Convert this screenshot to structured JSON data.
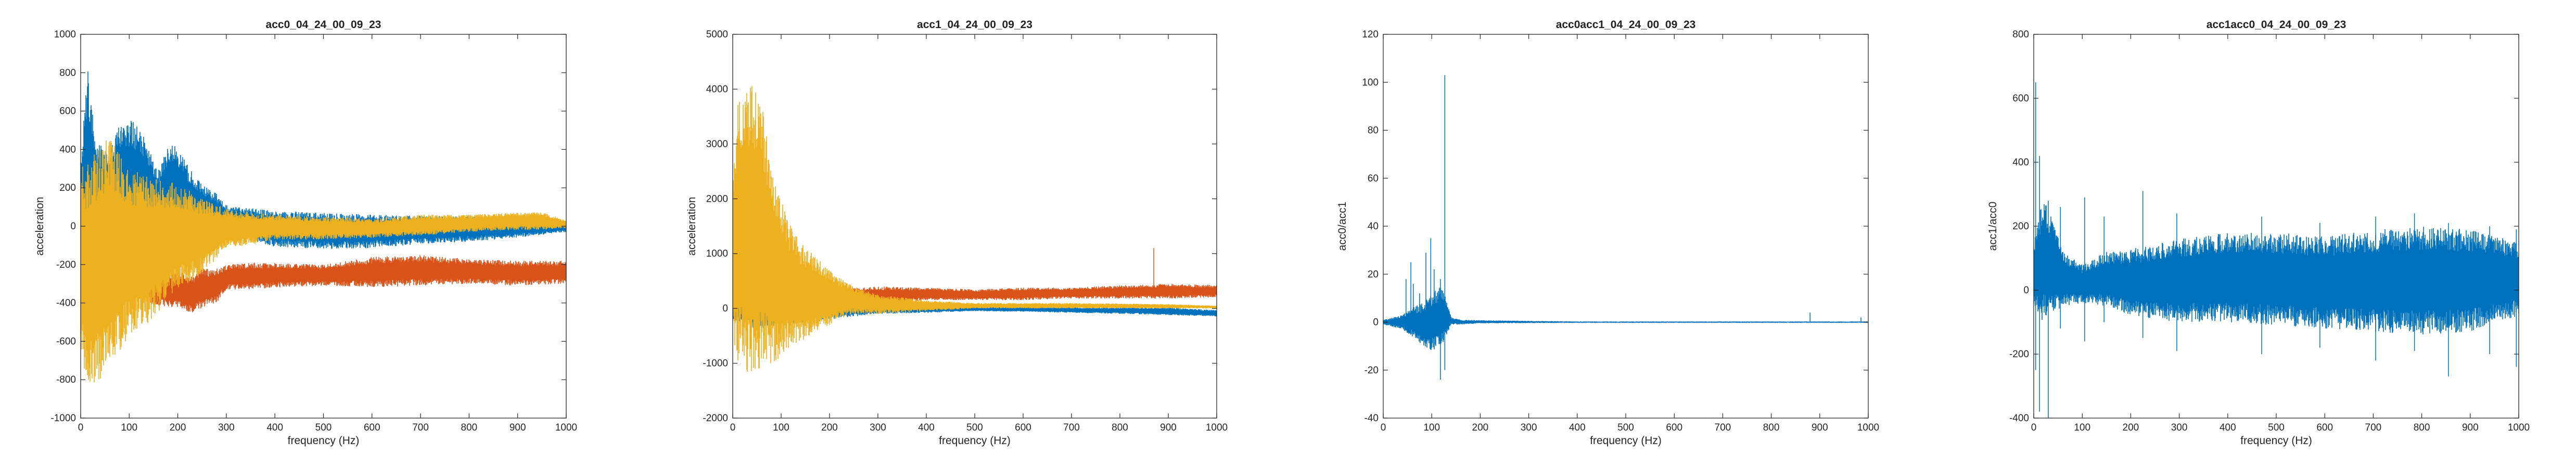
{
  "chart_data": [
    {
      "type": "line",
      "title": "acc0_04_24_00_09_23",
      "xlabel": "frequency (Hz)",
      "ylabel": "acceleration",
      "xlim": [
        0,
        1000
      ],
      "ylim": [
        -1000,
        1000
      ],
      "xticks": [
        0,
        100,
        200,
        300,
        400,
        500,
        600,
        700,
        800,
        900,
        1000
      ],
      "yticks": [
        -1000,
        -800,
        -600,
        -400,
        -200,
        0,
        200,
        400,
        600,
        800,
        1000
      ],
      "grid": false,
      "series": [
        {
          "color": "#0072BD",
          "order": 1,
          "envelope": [
            [
              0,
              -100,
              380
            ],
            [
              15,
              -200,
              820
            ],
            [
              30,
              -120,
              450
            ],
            [
              60,
              -90,
              380
            ],
            [
              80,
              -70,
              540
            ],
            [
              100,
              -80,
              560
            ],
            [
              120,
              -70,
              520
            ],
            [
              140,
              -60,
              420
            ],
            [
              160,
              -70,
              290
            ],
            [
              180,
              -60,
              440
            ],
            [
              200,
              -55,
              420
            ],
            [
              220,
              -50,
              320
            ],
            [
              250,
              -50,
              220
            ],
            [
              280,
              -40,
              170
            ],
            [
              300,
              -30,
              110
            ],
            [
              400,
              -110,
              80
            ],
            [
              500,
              -120,
              70
            ],
            [
              600,
              -115,
              60
            ],
            [
              700,
              -95,
              55
            ],
            [
              800,
              -80,
              55
            ],
            [
              900,
              -60,
              40
            ],
            [
              1000,
              -30,
              20
            ]
          ]
        },
        {
          "color": "#D95319",
          "order": 0,
          "envelope": [
            [
              0,
              -380,
              40
            ],
            [
              20,
              -400,
              30
            ],
            [
              50,
              -420,
              -260
            ],
            [
              80,
              -380,
              -250
            ],
            [
              100,
              -360,
              -230
            ],
            [
              150,
              -410,
              -240
            ],
            [
              200,
              -430,
              -230
            ],
            [
              230,
              -450,
              -260
            ],
            [
              250,
              -430,
              -220
            ],
            [
              280,
              -400,
              -220
            ],
            [
              300,
              -330,
              -200
            ],
            [
              350,
              -330,
              -190
            ],
            [
              400,
              -320,
              -190
            ],
            [
              500,
              -310,
              -200
            ],
            [
              600,
              -320,
              -160
            ],
            [
              700,
              -310,
              -150
            ],
            [
              800,
              -300,
              -170
            ],
            [
              900,
              -310,
              -180
            ],
            [
              1000,
              -300,
              -180
            ]
          ]
        },
        {
          "color": "#EDB120",
          "order": 2,
          "envelope": [
            [
              0,
              -650,
              320
            ],
            [
              10,
              -780,
              320
            ],
            [
              20,
              -850,
              360
            ],
            [
              40,
              -820,
              430
            ],
            [
              60,
              -700,
              460
            ],
            [
              80,
              -650,
              380
            ],
            [
              100,
              -580,
              310
            ],
            [
              130,
              -520,
              270
            ],
            [
              160,
              -460,
              250
            ],
            [
              200,
              -330,
              220
            ],
            [
              250,
              -250,
              150
            ],
            [
              300,
              -120,
              90
            ],
            [
              400,
              -70,
              60
            ],
            [
              500,
              -70,
              50
            ],
            [
              600,
              -60,
              40
            ],
            [
              700,
              -50,
              60
            ],
            [
              800,
              -30,
              60
            ],
            [
              900,
              -20,
              70
            ],
            [
              950,
              -20,
              75
            ],
            [
              1000,
              -10,
              30
            ]
          ]
        }
      ],
      "spikes": []
    },
    {
      "type": "line",
      "title": "acc1_04_24_00_09_23",
      "xlabel": "frequency (Hz)",
      "ylabel": "acceleration",
      "xlim": [
        0,
        1000
      ],
      "ylim": [
        -2000,
        5000
      ],
      "xticks": [
        0,
        100,
        200,
        300,
        400,
        500,
        600,
        700,
        800,
        900,
        1000
      ],
      "yticks": [
        -2000,
        -1000,
        0,
        1000,
        2000,
        3000,
        4000,
        5000
      ],
      "grid": false,
      "series": [
        {
          "color": "#0072BD",
          "order": 1,
          "envelope": [
            [
              0,
              -200,
              300
            ],
            [
              50,
              -400,
              400
            ],
            [
              100,
              -300,
              300
            ],
            [
              200,
              -200,
              200
            ],
            [
              300,
              -100,
              100
            ],
            [
              400,
              -80,
              50
            ],
            [
              500,
              -50,
              20
            ],
            [
              600,
              -60,
              30
            ],
            [
              700,
              -80,
              20
            ],
            [
              800,
              -100,
              20
            ],
            [
              900,
              -120,
              20
            ],
            [
              1000,
              -150,
              -30
            ]
          ]
        },
        {
          "color": "#D95319",
          "order": 0,
          "envelope": [
            [
              0,
              -200,
              300
            ],
            [
              100,
              -150,
              400
            ],
            [
              200,
              -100,
              350
            ],
            [
              300,
              100,
              400
            ],
            [
              400,
              150,
              380
            ],
            [
              500,
              150,
              350
            ],
            [
              600,
              150,
              380
            ],
            [
              700,
              180,
              380
            ],
            [
              800,
              180,
              420
            ],
            [
              900,
              180,
              450
            ],
            [
              1000,
              200,
              430
            ]
          ]
        },
        {
          "color": "#EDB120",
          "order": 2,
          "envelope": [
            [
              0,
              -600,
              2500
            ],
            [
              10,
              -1000,
              3800
            ],
            [
              20,
              -1150,
              4050
            ],
            [
              40,
              -1200,
              4100
            ],
            [
              60,
              -1100,
              3800
            ],
            [
              80,
              -1000,
              2600
            ],
            [
              100,
              -900,
              2000
            ],
            [
              120,
              -700,
              1500
            ],
            [
              140,
              -600,
              1200
            ],
            [
              160,
              -500,
              1050
            ],
            [
              200,
              -300,
              700
            ],
            [
              250,
              -100,
              400
            ],
            [
              300,
              -100,
              250
            ],
            [
              400,
              -50,
              150
            ],
            [
              500,
              0,
              100
            ],
            [
              700,
              0,
              100
            ],
            [
              900,
              0,
              80
            ],
            [
              1000,
              0,
              50
            ]
          ]
        }
      ],
      "spikes": [
        {
          "series": 1,
          "x": 870,
          "y0": 200,
          "y1": 1100
        }
      ]
    },
    {
      "type": "line",
      "title": "acc0acc1_04_24_00_09_23",
      "xlabel": "frequency (Hz)",
      "ylabel": "acc0/acc1",
      "xlim": [
        0,
        1000
      ],
      "ylim": [
        -40,
        120
      ],
      "xticks": [
        0,
        100,
        200,
        300,
        400,
        500,
        600,
        700,
        800,
        900,
        1000
      ],
      "yticks": [
        -40,
        -20,
        0,
        20,
        40,
        60,
        80,
        100,
        120
      ],
      "grid": false,
      "series": [
        {
          "color": "#0072BD",
          "order": 0,
          "envelope": [
            [
              0,
              -1,
              1
            ],
            [
              40,
              -3,
              3
            ],
            [
              60,
              -6,
              6
            ],
            [
              80,
              -10,
              8
            ],
            [
              100,
              -12,
              12
            ],
            [
              120,
              -10,
              15
            ],
            [
              130,
              -6,
              10
            ],
            [
              140,
              -1,
              2
            ],
            [
              160,
              -1,
              1
            ],
            [
              200,
              -0.5,
              0.8
            ],
            [
              400,
              -0.3,
              0.3
            ],
            [
              700,
              -0.3,
              0.3
            ],
            [
              1000,
              -0.3,
              0.3
            ]
          ]
        }
      ],
      "spikes": [
        {
          "series": 0,
          "x": 47,
          "y0": 0,
          "y1": 18
        },
        {
          "series": 0,
          "x": 57,
          "y0": 0,
          "y1": 25
        },
        {
          "series": 0,
          "x": 62,
          "y0": 0,
          "y1": 16
        },
        {
          "series": 0,
          "x": 75,
          "y0": 0,
          "y1": 12
        },
        {
          "series": 0,
          "x": 88,
          "y0": 0,
          "y1": 29
        },
        {
          "series": 0,
          "x": 98,
          "y0": 0,
          "y1": 35
        },
        {
          "series": 0,
          "x": 105,
          "y0": 0,
          "y1": 22
        },
        {
          "series": 0,
          "x": 118,
          "y0": -24,
          "y1": 18
        },
        {
          "series": 0,
          "x": 127,
          "y0": -20,
          "y1": 103
        },
        {
          "series": 0,
          "x": 880,
          "y0": 0,
          "y1": 4
        },
        {
          "series": 0,
          "x": 985,
          "y0": 0,
          "y1": 2
        }
      ]
    },
    {
      "type": "line",
      "title": "acc1acc0_04_24_00_09_23",
      "xlabel": "frequency (Hz)",
      "ylabel": "acc1/acc0",
      "xlim": [
        0,
        1000
      ],
      "ylim": [
        -400,
        800
      ],
      "xticks": [
        0,
        100,
        200,
        300,
        400,
        500,
        600,
        700,
        800,
        900,
        1000
      ],
      "yticks": [
        -400,
        -200,
        0,
        200,
        400,
        600,
        800
      ],
      "grid": false,
      "series": [
        {
          "color": "#0072BD",
          "order": 0,
          "envelope": [
            [
              0,
              -50,
              150
            ],
            [
              20,
              -100,
              300
            ],
            [
              60,
              -50,
              120
            ],
            [
              100,
              -40,
              80
            ],
            [
              150,
              -50,
              120
            ],
            [
              200,
              -80,
              130
            ],
            [
              300,
              -100,
              160
            ],
            [
              400,
              -100,
              180
            ],
            [
              500,
              -110,
              180
            ],
            [
              600,
              -120,
              170
            ],
            [
              700,
              -130,
              190
            ],
            [
              800,
              -140,
              200
            ],
            [
              900,
              -130,
              190
            ],
            [
              1000,
              -80,
              150
            ]
          ]
        }
      ],
      "spikes": [
        {
          "series": 0,
          "x": 4,
          "y0": -250,
          "y1": 650
        },
        {
          "series": 0,
          "x": 12,
          "y0": -380,
          "y1": 420
        },
        {
          "series": 0,
          "x": 30,
          "y0": -400,
          "y1": 280
        },
        {
          "series": 0,
          "x": 55,
          "y0": -120,
          "y1": 260
        },
        {
          "series": 0,
          "x": 105,
          "y0": -160,
          "y1": 290
        },
        {
          "series": 0,
          "x": 145,
          "y0": -100,
          "y1": 230
        },
        {
          "series": 0,
          "x": 225,
          "y0": -150,
          "y1": 310
        },
        {
          "series": 0,
          "x": 295,
          "y0": -190,
          "y1": 240
        },
        {
          "series": 0,
          "x": 470,
          "y0": -200,
          "y1": 230
        },
        {
          "series": 0,
          "x": 590,
          "y0": -180,
          "y1": 210
        },
        {
          "series": 0,
          "x": 705,
          "y0": -220,
          "y1": 230
        },
        {
          "series": 0,
          "x": 785,
          "y0": -190,
          "y1": 240
        },
        {
          "series": 0,
          "x": 855,
          "y0": -270,
          "y1": 210
        },
        {
          "series": 0,
          "x": 940,
          "y0": -200,
          "y1": 200
        },
        {
          "series": 0,
          "x": 995,
          "y0": -240,
          "y1": 190
        }
      ]
    }
  ]
}
